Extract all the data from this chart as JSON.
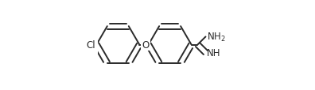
{
  "bg_color": "#ffffff",
  "line_color": "#2a2a2a",
  "line_width": 1.4,
  "dbo": 0.025,
  "fs": 8.5,
  "fig_width": 3.96,
  "fig_height": 1.15,
  "dpi": 100,
  "r": 0.19,
  "lcx": 0.175,
  "lcy": 0.5,
  "rcx": 0.635,
  "rcy": 0.5,
  "xlim": [
    0.0,
    1.05
  ],
  "ylim": [
    0.1,
    0.9
  ]
}
